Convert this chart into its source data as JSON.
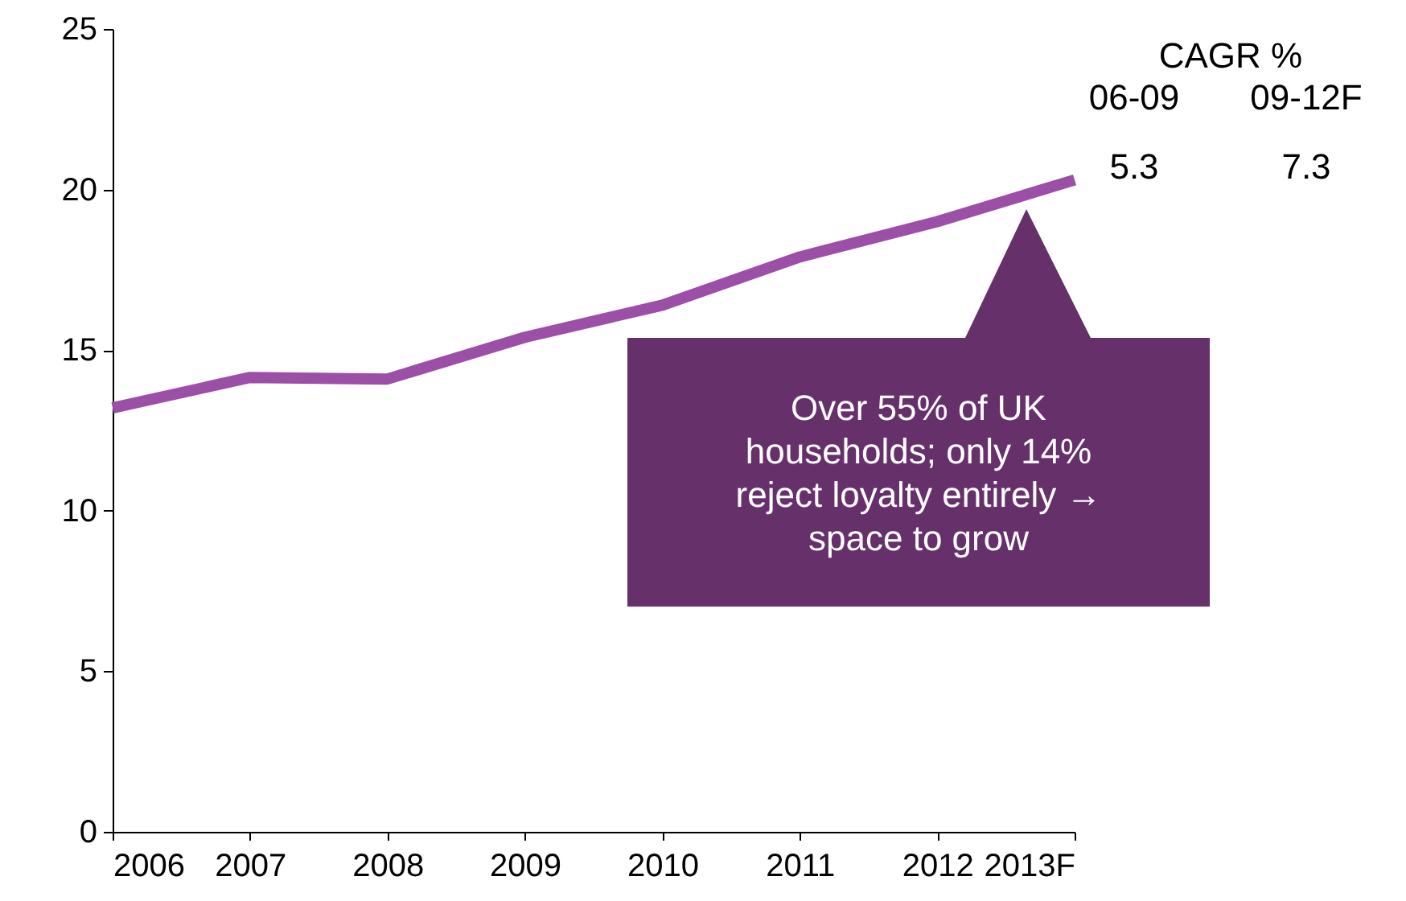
{
  "chart_data": {
    "type": "line",
    "categories": [
      "2006",
      "2007",
      "2008",
      "2009",
      "2010",
      "2011",
      "2012",
      "2013F"
    ],
    "series": [
      {
        "color": "#9b4fa6",
        "values": [
          13.2,
          14.15,
          14.1,
          15.4,
          16.4,
          17.9,
          19.0,
          20.3
        ]
      }
    ],
    "ylim": [
      0,
      25
    ],
    "yticks": [
      0,
      5,
      10,
      15,
      20,
      25
    ],
    "grid": false,
    "marker": "none",
    "line_style": "solid",
    "annotations": [
      "CAGR %",
      "06-09",
      "09-12F",
      "5.3",
      "7.3",
      "Over 55% of UK households; only 14% reject loyalty entirely → space to grow"
    ]
  }
}
